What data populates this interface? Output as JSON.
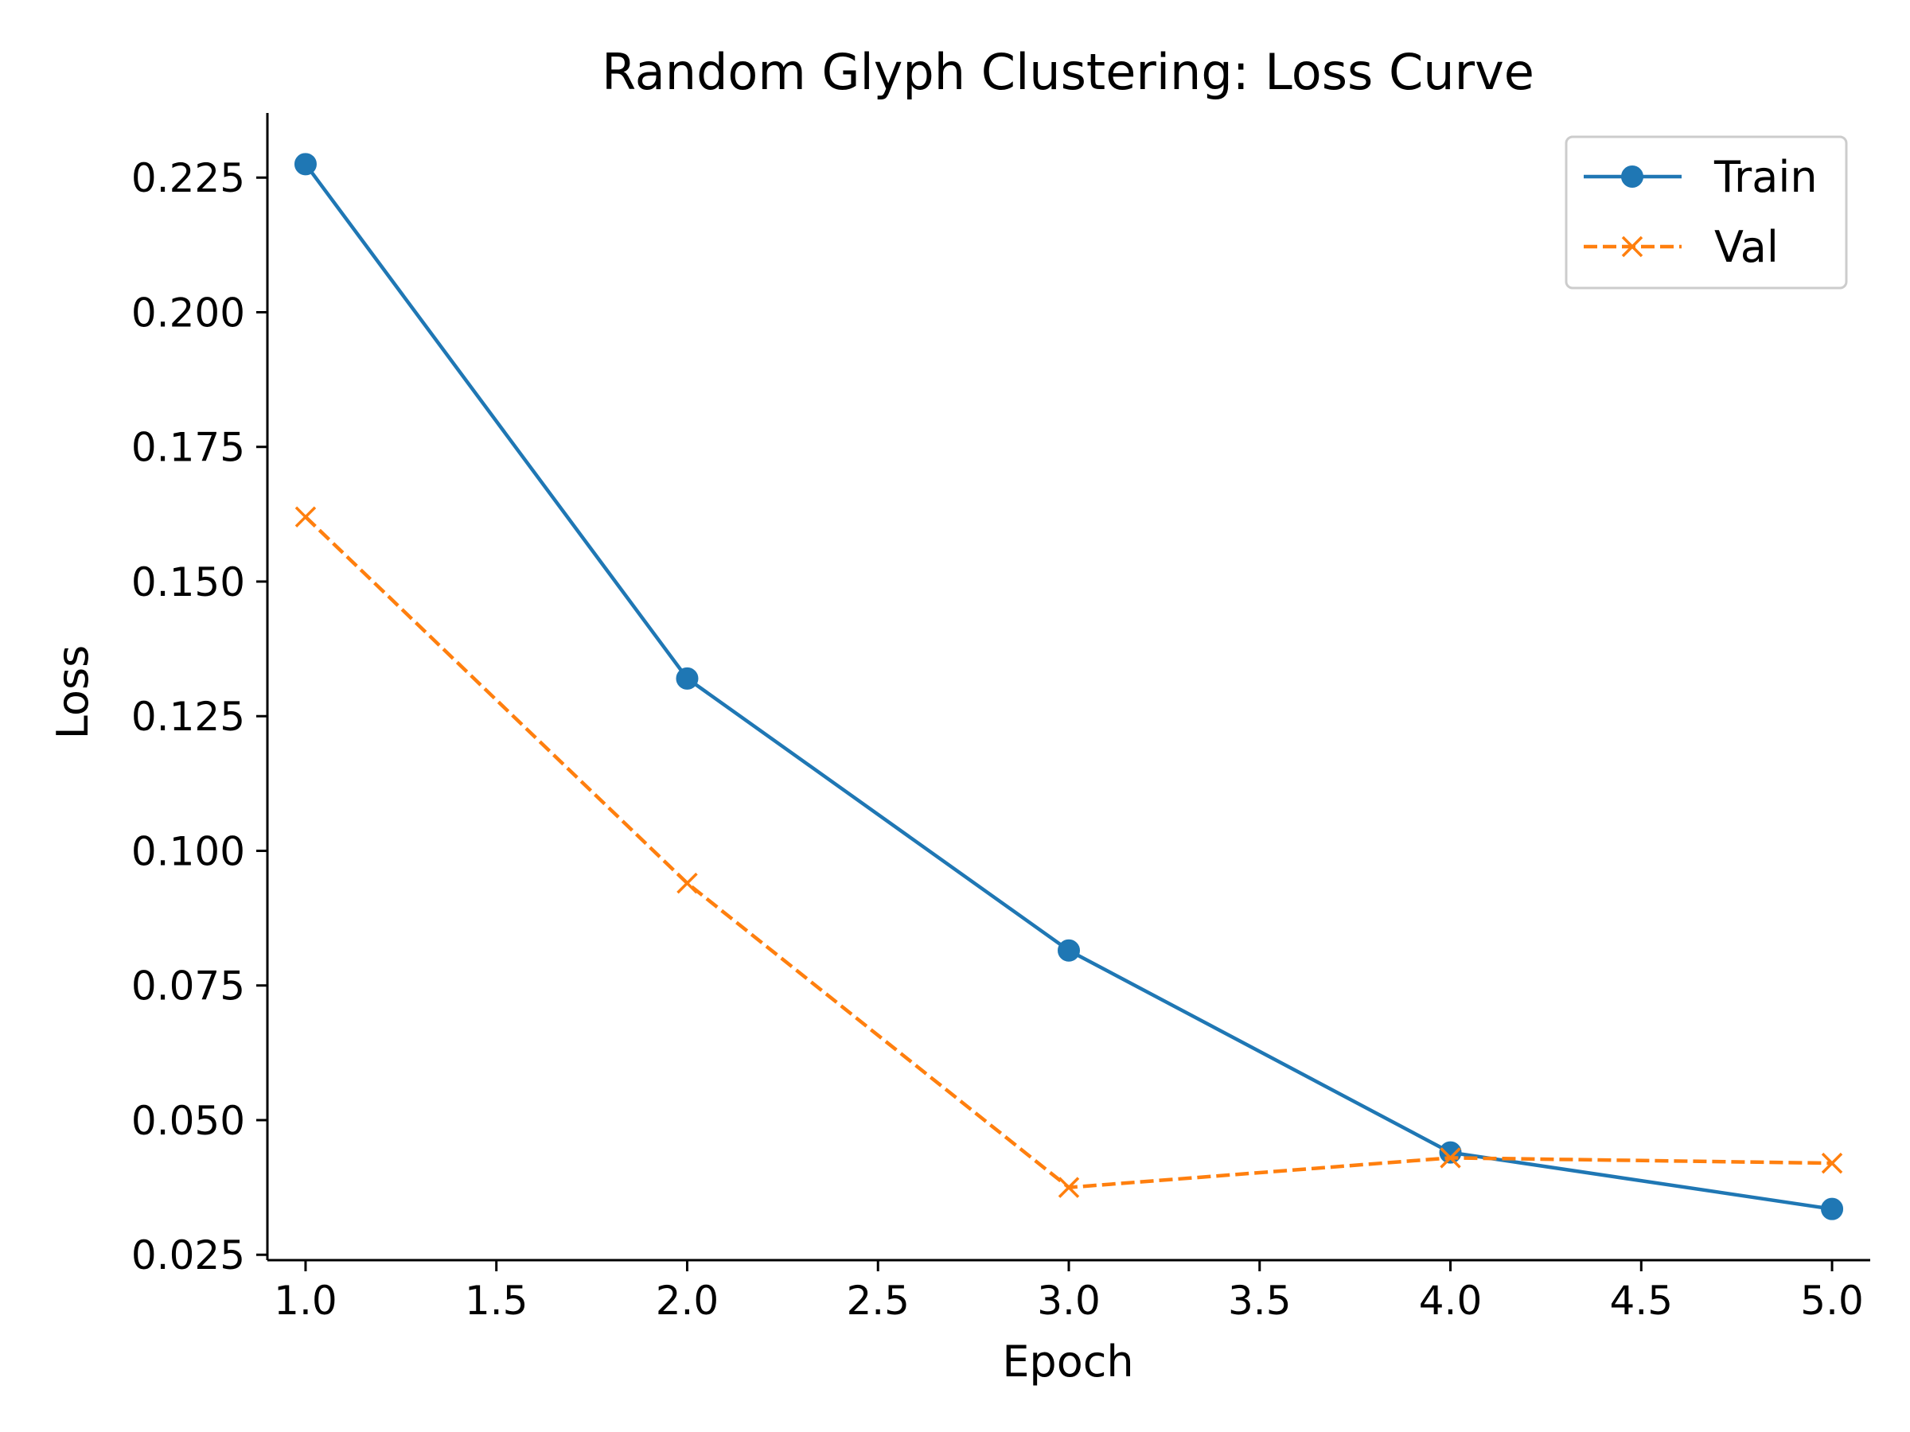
{
  "chart_data": {
    "type": "line",
    "title": "Random Glyph Clustering: Loss Curve",
    "xlabel": "Epoch",
    "ylabel": "Loss",
    "xlim": [
      0.9,
      5.1
    ],
    "ylim": [
      0.024,
      0.237
    ],
    "xticks": [
      1.0,
      1.5,
      2.0,
      2.5,
      3.0,
      3.5,
      4.0,
      4.5,
      5.0
    ],
    "xtick_labels": [
      "1.0",
      "1.5",
      "2.0",
      "2.5",
      "3.0",
      "3.5",
      "4.0",
      "4.5",
      "5.0"
    ],
    "yticks": [
      0.025,
      0.05,
      0.075,
      0.1,
      0.125,
      0.15,
      0.175,
      0.2,
      0.225
    ],
    "ytick_labels": [
      "0.025",
      "0.050",
      "0.075",
      "0.100",
      "0.125",
      "0.150",
      "0.175",
      "0.200",
      "0.225"
    ],
    "grid": false,
    "legend_position": "top-right",
    "x": [
      1,
      2,
      3,
      4,
      5
    ],
    "series": [
      {
        "name": "Train",
        "values": [
          0.2275,
          0.132,
          0.0815,
          0.044,
          0.0335
        ],
        "color": "#1f77b4",
        "line_style": "solid",
        "marker": "circle"
      },
      {
        "name": "Val",
        "values": [
          0.162,
          0.094,
          0.0375,
          0.043,
          0.042
        ],
        "color": "#ff7f0e",
        "line_style": "dashed",
        "marker": "x"
      }
    ]
  }
}
